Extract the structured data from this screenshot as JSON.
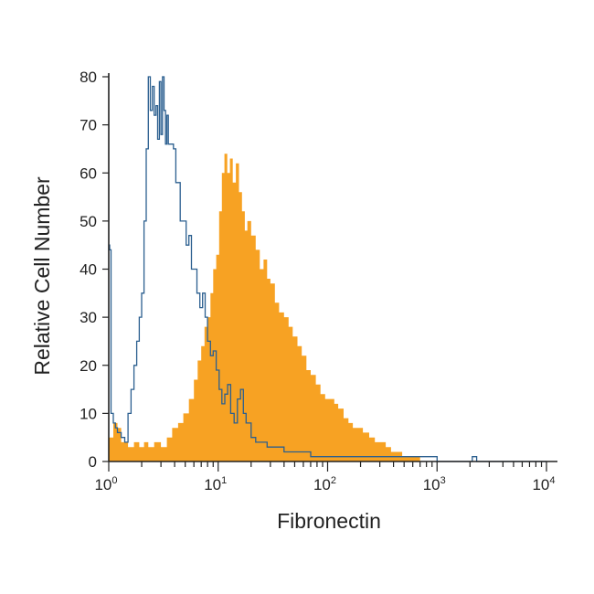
{
  "chart_data": {
    "type": "area",
    "xlabel": "Fibronectin",
    "ylabel": "Relative Cell Number",
    "x_scale": "log",
    "xlim": [
      1,
      10000
    ],
    "ylim": [
      0,
      80
    ],
    "yticks": [
      "0",
      "10",
      "20",
      "30",
      "40",
      "50",
      "60",
      "70",
      "80"
    ],
    "xticks": [
      {
        "base": "10",
        "exp": "0"
      },
      {
        "base": "10",
        "exp": "1"
      },
      {
        "base": "10",
        "exp": "2"
      },
      {
        "base": "10",
        "exp": "3"
      },
      {
        "base": "10",
        "exp": "4"
      }
    ],
    "grid": false,
    "legend": "none",
    "series": [
      {
        "style": "filled-histogram",
        "color": "#f7a223",
        "x": [
          1.0,
          1.1,
          1.2,
          1.3,
          1.5,
          1.7,
          1.9,
          2.1,
          2.3,
          2.6,
          3.0,
          3.4,
          3.8,
          4.3,
          4.8,
          5.4,
          6.0,
          6.5,
          7.0,
          7.5,
          8.0,
          8.5,
          9.0,
          9.6,
          10.2,
          10.8,
          11.4,
          12.1,
          12.8,
          13.6,
          14.5,
          15.5,
          16.5,
          17.5,
          18.5,
          20.0,
          22.0,
          24.0,
          26.0,
          28.0,
          30.0,
          33.0,
          36.0,
          40.0,
          44.0,
          48.0,
          53.0,
          58.0,
          64.0,
          70.0,
          78.0,
          86.0,
          95.0,
          105,
          115,
          125,
          140,
          155,
          170,
          190,
          210,
          240,
          270,
          300,
          340,
          380,
          430,
          480,
          550,
          620,
          700,
          800
        ],
        "values": [
          5,
          8,
          7,
          4,
          3,
          4,
          3,
          4,
          3,
          4,
          3,
          5,
          7,
          8,
          10,
          13,
          17,
          21,
          24,
          28,
          30,
          35,
          40,
          43,
          52,
          60,
          64,
          60,
          63,
          58,
          62,
          56,
          52,
          48,
          50,
          47,
          44,
          40,
          42,
          38,
          37,
          33,
          31,
          30,
          28,
          26,
          24,
          22,
          19,
          18,
          16,
          14,
          13,
          13,
          12,
          11,
          9,
          8,
          7,
          7,
          6,
          5,
          4,
          4,
          3,
          2,
          2,
          1,
          1,
          1,
          0,
          0
        ]
      },
      {
        "style": "outline-histogram",
        "color": "#2b5f8f",
        "x": [
          1.0,
          1.02,
          1.05,
          1.1,
          1.15,
          1.2,
          1.3,
          1.4,
          1.5,
          1.6,
          1.7,
          1.8,
          1.9,
          2.0,
          2.1,
          2.2,
          2.3,
          2.4,
          2.5,
          2.6,
          2.7,
          2.8,
          2.9,
          3.0,
          3.1,
          3.2,
          3.3,
          3.4,
          3.5,
          3.7,
          3.9,
          4.1,
          4.3,
          4.5,
          4.8,
          5.1,
          5.4,
          5.7,
          6.0,
          6.4,
          6.8,
          7.2,
          7.6,
          8.0,
          8.5,
          9.0,
          9.6,
          10.2,
          10.8,
          11.5,
          12.2,
          13.0,
          14.0,
          15.0,
          16.0,
          17.0,
          18.0,
          20.0,
          22.0,
          25.0,
          28.0,
          32.0,
          36.0,
          40.0,
          45.0,
          50.0,
          60.0,
          70.0,
          85.0,
          100,
          120,
          150,
          200,
          250,
          300,
          400,
          500,
          600,
          700,
          800,
          1000,
          1500,
          2000,
          2100,
          2300,
          3000,
          5000,
          8000,
          10000
        ],
        "values": [
          45,
          44,
          10,
          8,
          7,
          6,
          5,
          4,
          10,
          15,
          20,
          25,
          30,
          35,
          50,
          65,
          80,
          73,
          78,
          72,
          74,
          67,
          79,
          68,
          80,
          73,
          66,
          72,
          66,
          66,
          65,
          58,
          58,
          50,
          50,
          45,
          47,
          40,
          40,
          35,
          32,
          35,
          30,
          25,
          22,
          23,
          19,
          15,
          12,
          14,
          16,
          10,
          8,
          13,
          15,
          10,
          8,
          5,
          4,
          4,
          3,
          3,
          3,
          2,
          2,
          2,
          2,
          1,
          1,
          1,
          1,
          1,
          1,
          1,
          1,
          1,
          1,
          1,
          1,
          1,
          0,
          0,
          0,
          1,
          0,
          0,
          0,
          0,
          0
        ]
      }
    ]
  }
}
